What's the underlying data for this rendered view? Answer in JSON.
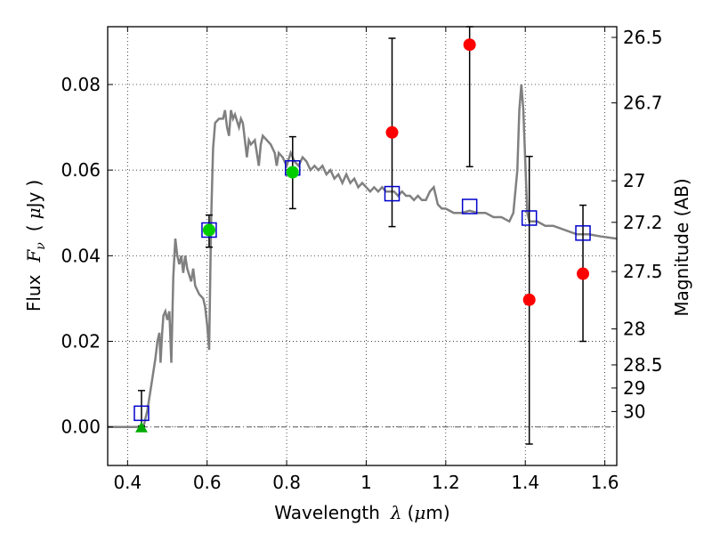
{
  "chart_data": {
    "type": "scatter",
    "x_axis": {
      "label_prefix": "Wavelength",
      "label_symbol": "λ",
      "label_unit_open": "(",
      "label_unit_mu": "μ",
      "label_unit_rest": "m)",
      "range": [
        0.35,
        1.63
      ],
      "ticks": [
        0.4,
        0.6,
        0.8,
        1.0,
        1.2,
        1.4,
        1.6
      ],
      "tick_labels": [
        "0.4",
        "0.6",
        "0.8",
        "1",
        "1.2",
        "1.4",
        "1.6"
      ]
    },
    "y_axis": {
      "label_prefix": "Flux",
      "label_symbol_main": "F",
      "label_symbol_sub": "ν",
      "label_unit_open": "(",
      "label_unit_mu": "μ",
      "label_unit_rest": "Jy",
      "label_unit_close": ")",
      "range": [
        -0.009,
        0.0935
      ],
      "ticks": [
        0.0,
        0.02,
        0.04,
        0.06,
        0.08
      ],
      "tick_labels": [
        "0.00",
        "0.02",
        "0.04",
        "0.06",
        "0.08"
      ]
    },
    "right_axis": {
      "label": "Magnitude (AB)",
      "ticks": [
        {
          "flux": 0.091,
          "label": "26.5"
        },
        {
          "flux": 0.0757,
          "label": "26.7"
        },
        {
          "flux": 0.0575,
          "label": "27"
        },
        {
          "flux": 0.0478,
          "label": "27.2"
        },
        {
          "flux": 0.0363,
          "label": "27.5"
        },
        {
          "flux": 0.0229,
          "label": "28"
        },
        {
          "flux": 0.0145,
          "label": "28.5"
        },
        {
          "flux": 0.0091,
          "label": "29"
        },
        {
          "flux": 0.0036,
          "label": "30"
        }
      ]
    },
    "grid": true,
    "zero_line": true,
    "model_sed": {
      "color": "#808080",
      "points": [
        [
          0.35,
          0.0
        ],
        [
          0.44,
          0.0
        ],
        [
          0.45,
          0.004
        ],
        [
          0.46,
          0.01
        ],
        [
          0.47,
          0.016
        ],
        [
          0.475,
          0.02
        ],
        [
          0.48,
          0.022
        ],
        [
          0.483,
          0.015
        ],
        [
          0.487,
          0.022
        ],
        [
          0.49,
          0.026
        ],
        [
          0.495,
          0.027
        ],
        [
          0.5,
          0.025
        ],
        [
          0.505,
          0.027
        ],
        [
          0.51,
          0.015
        ],
        [
          0.515,
          0.035
        ],
        [
          0.52,
          0.044
        ],
        [
          0.525,
          0.04
        ],
        [
          0.53,
          0.038
        ],
        [
          0.535,
          0.04
        ],
        [
          0.54,
          0.036
        ],
        [
          0.545,
          0.04
        ],
        [
          0.55,
          0.037
        ],
        [
          0.56,
          0.034
        ],
        [
          0.565,
          0.037
        ],
        [
          0.57,
          0.033
        ],
        [
          0.58,
          0.031
        ],
        [
          0.59,
          0.03
        ],
        [
          0.595,
          0.028
        ],
        [
          0.6,
          0.024
        ],
        [
          0.605,
          0.018
        ],
        [
          0.61,
          0.048
        ],
        [
          0.615,
          0.065
        ],
        [
          0.62,
          0.071
        ],
        [
          0.63,
          0.072
        ],
        [
          0.64,
          0.072
        ],
        [
          0.645,
          0.074
        ],
        [
          0.65,
          0.07
        ],
        [
          0.655,
          0.068
        ],
        [
          0.66,
          0.074
        ],
        [
          0.665,
          0.072
        ],
        [
          0.67,
          0.073
        ],
        [
          0.68,
          0.07
        ],
        [
          0.685,
          0.072
        ],
        [
          0.69,
          0.071
        ],
        [
          0.7,
          0.063
        ],
        [
          0.705,
          0.067
        ],
        [
          0.71,
          0.066
        ],
        [
          0.72,
          0.067
        ],
        [
          0.725,
          0.064
        ],
        [
          0.73,
          0.061
        ],
        [
          0.735,
          0.066
        ],
        [
          0.74,
          0.068
        ],
        [
          0.75,
          0.067
        ],
        [
          0.76,
          0.066
        ],
        [
          0.77,
          0.064
        ],
        [
          0.775,
          0.061
        ],
        [
          0.78,
          0.064
        ],
        [
          0.79,
          0.063
        ],
        [
          0.8,
          0.061
        ],
        [
          0.81,
          0.064
        ],
        [
          0.82,
          0.062
        ],
        [
          0.83,
          0.061
        ],
        [
          0.84,
          0.063
        ],
        [
          0.85,
          0.062
        ],
        [
          0.86,
          0.06
        ],
        [
          0.87,
          0.061
        ],
        [
          0.88,
          0.06
        ],
        [
          0.89,
          0.061
        ],
        [
          0.9,
          0.059
        ],
        [
          0.91,
          0.06
        ],
        [
          0.92,
          0.058
        ],
        [
          0.93,
          0.059
        ],
        [
          0.94,
          0.057
        ],
        [
          0.95,
          0.059
        ],
        [
          0.96,
          0.057
        ],
        [
          0.97,
          0.058
        ],
        [
          0.98,
          0.056
        ],
        [
          0.99,
          0.057
        ],
        [
          1.0,
          0.056
        ],
        [
          1.01,
          0.055
        ],
        [
          1.02,
          0.056
        ],
        [
          1.03,
          0.055
        ],
        [
          1.04,
          0.056
        ],
        [
          1.05,
          0.055
        ],
        [
          1.06,
          0.055
        ],
        [
          1.07,
          0.055
        ],
        [
          1.08,
          0.054
        ],
        [
          1.09,
          0.055
        ],
        [
          1.1,
          0.054
        ],
        [
          1.11,
          0.054
        ],
        [
          1.12,
          0.053
        ],
        [
          1.13,
          0.054
        ],
        [
          1.14,
          0.053
        ],
        [
          1.15,
          0.053
        ],
        [
          1.16,
          0.055
        ],
        [
          1.17,
          0.056
        ],
        [
          1.18,
          0.052
        ],
        [
          1.19,
          0.051
        ],
        [
          1.2,
          0.051
        ],
        [
          1.22,
          0.05
        ],
        [
          1.24,
          0.05
        ],
        [
          1.26,
          0.0505
        ],
        [
          1.28,
          0.05
        ],
        [
          1.3,
          0.05
        ],
        [
          1.32,
          0.049
        ],
        [
          1.34,
          0.049
        ],
        [
          1.36,
          0.048
        ],
        [
          1.37,
          0.05
        ],
        [
          1.38,
          0.06
        ],
        [
          1.385,
          0.074
        ],
        [
          1.39,
          0.08
        ],
        [
          1.395,
          0.074
        ],
        [
          1.4,
          0.062
        ],
        [
          1.405,
          0.05
        ],
        [
          1.41,
          0.048
        ],
        [
          1.43,
          0.048
        ],
        [
          1.45,
          0.047
        ],
        [
          1.47,
          0.047
        ],
        [
          1.5,
          0.046
        ],
        [
          1.53,
          0.045
        ],
        [
          1.56,
          0.045
        ],
        [
          1.59,
          0.0445
        ],
        [
          1.63,
          0.044
        ]
      ]
    },
    "model_bands": {
      "color": "#0000cc",
      "points": [
        [
          0.435,
          0.0032
        ],
        [
          0.605,
          0.046
        ],
        [
          0.815,
          0.0605
        ],
        [
          1.065,
          0.0545
        ],
        [
          1.26,
          0.0515
        ],
        [
          1.41,
          0.0488
        ],
        [
          1.545,
          0.0453
        ]
      ]
    },
    "observed_green": {
      "color": "#00cc00",
      "points": [
        [
          0.605,
          0.046
        ],
        [
          0.815,
          0.0595
        ]
      ]
    },
    "observed_red": {
      "color": "#ff0000",
      "points": [
        [
          1.065,
          0.0688
        ],
        [
          1.26,
          0.0893
        ],
        [
          1.41,
          0.0297
        ],
        [
          1.545,
          0.0358
        ]
      ]
    },
    "upper_limit": {
      "color": "#00aa00",
      "points": [
        [
          0.435,
          0.0
        ]
      ]
    },
    "error_bars": [
      {
        "x": 0.435,
        "low": 0.0002,
        "high": 0.0085
      },
      {
        "x": 0.605,
        "low": 0.042,
        "high": 0.0495
      },
      {
        "x": 0.815,
        "low": 0.051,
        "high": 0.0678
      },
      {
        "x": 1.065,
        "low": 0.0468,
        "high": 0.0908
      },
      {
        "x": 1.26,
        "low": 0.0608,
        "high": 0.0935
      },
      {
        "x": 1.41,
        "low": -0.004,
        "high": 0.0632
      },
      {
        "x": 1.545,
        "low": 0.02,
        "high": 0.0518
      }
    ]
  }
}
